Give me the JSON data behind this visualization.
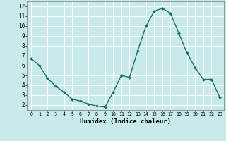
{
  "x": [
    0,
    1,
    2,
    3,
    4,
    5,
    6,
    7,
    8,
    9,
    10,
    11,
    12,
    13,
    14,
    15,
    16,
    17,
    18,
    19,
    20,
    21,
    22,
    23
  ],
  "y": [
    6.7,
    6.0,
    4.7,
    3.9,
    3.3,
    2.6,
    2.4,
    2.1,
    1.9,
    1.8,
    3.3,
    5.0,
    4.8,
    7.5,
    10.0,
    11.5,
    11.8,
    11.3,
    9.3,
    7.3,
    5.8,
    4.6,
    4.6,
    2.8
  ],
  "xlabel": "Humidex (Indice chaleur)",
  "ylim": [
    1.5,
    12.5
  ],
  "xlim": [
    -0.5,
    23.5
  ],
  "yticks": [
    2,
    3,
    4,
    5,
    6,
    7,
    8,
    9,
    10,
    11,
    12
  ],
  "xtick_labels": [
    "0",
    "1",
    "2",
    "3",
    "4",
    "5",
    "6",
    "7",
    "8",
    "9",
    "10",
    "11",
    "12",
    "13",
    "14",
    "15",
    "16",
    "17",
    "18",
    "19",
    "20",
    "21",
    "22",
    "23"
  ],
  "line_color": "#1a7060",
  "marker_color": "#1a7060",
  "bg_color": "#c8eaea",
  "grid_color": "#ffffff"
}
